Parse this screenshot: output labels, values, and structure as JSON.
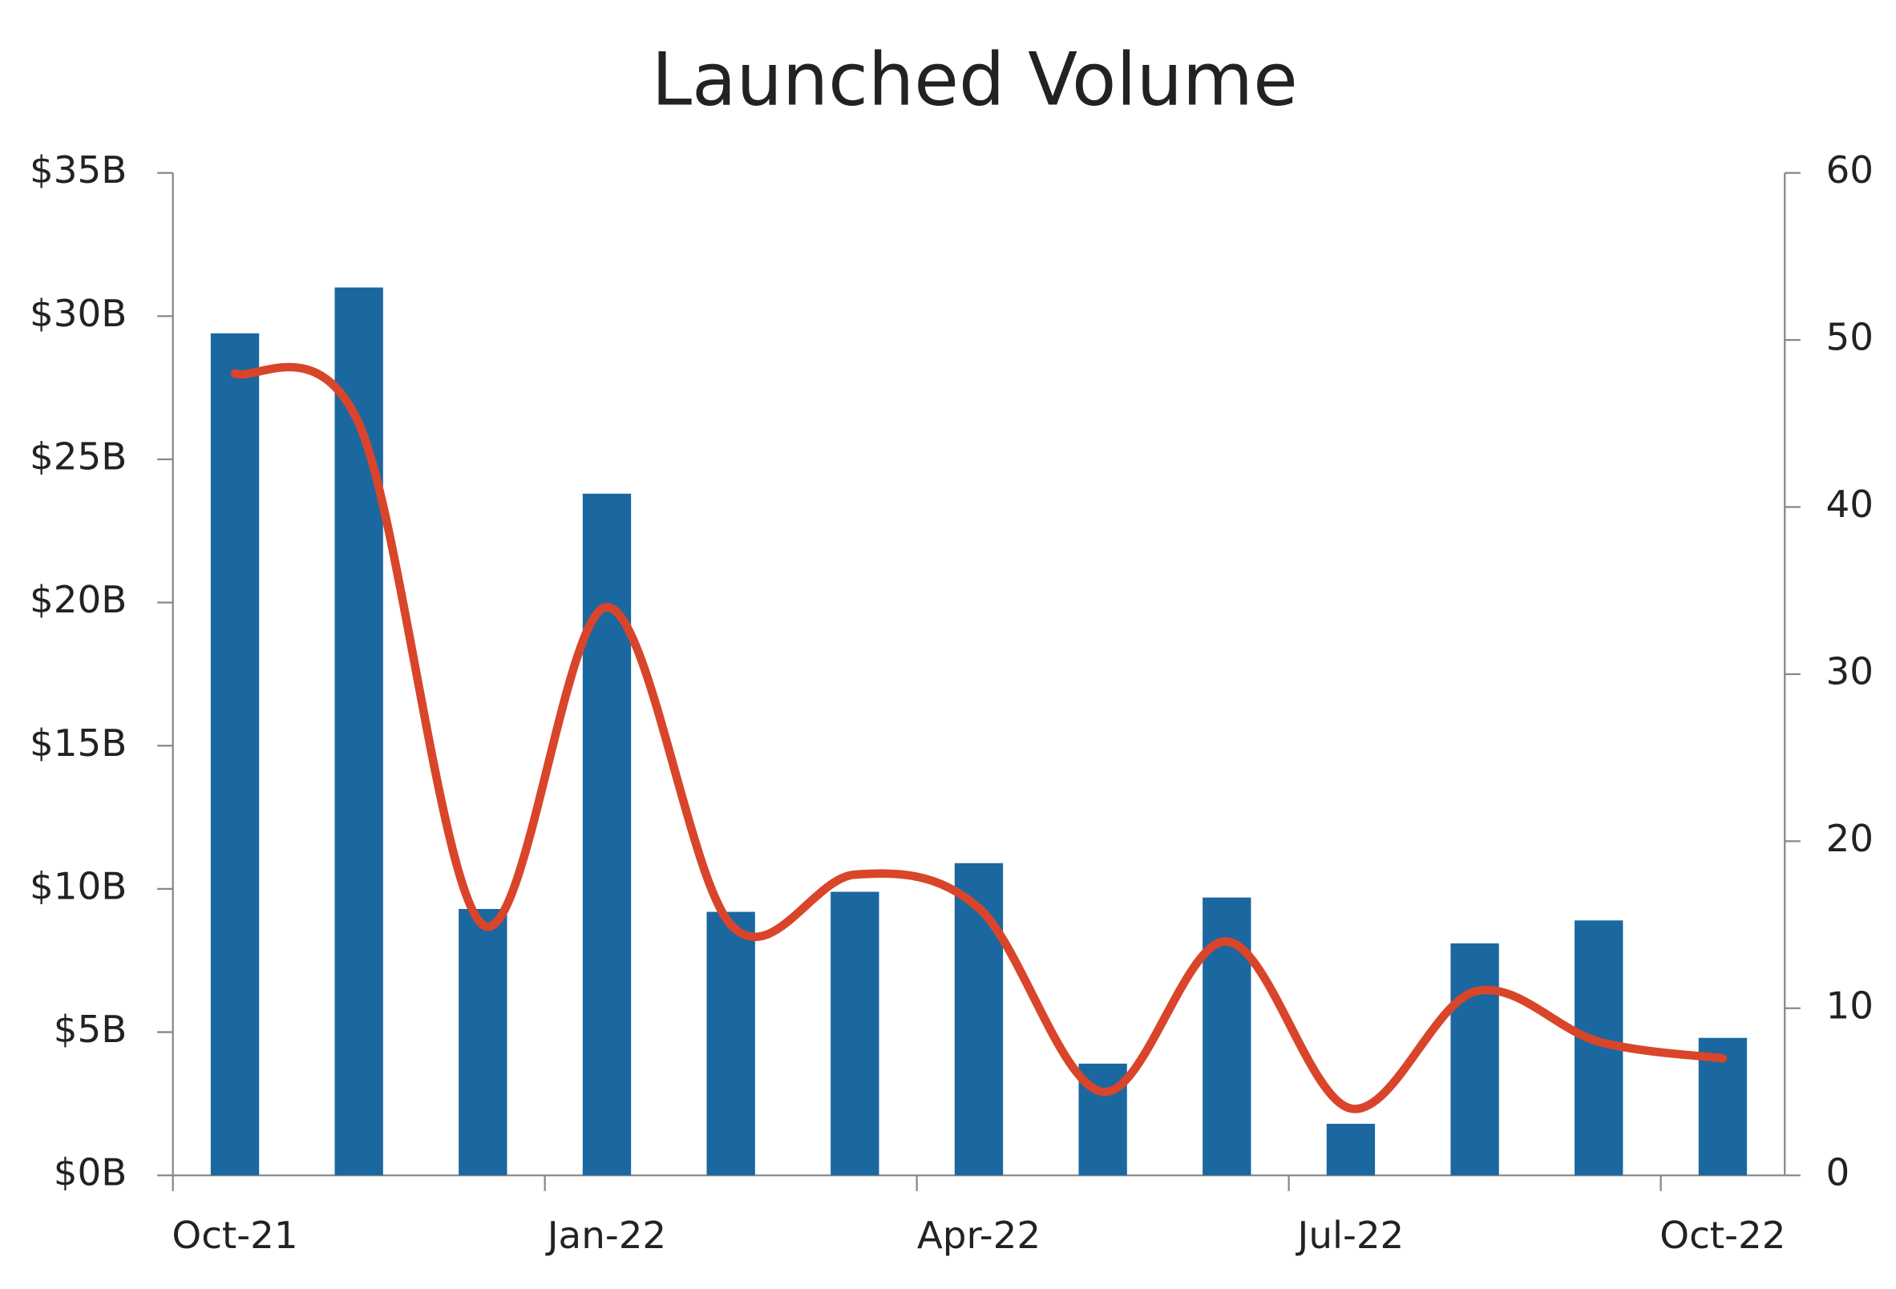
{
  "chart_data": {
    "type": "bar",
    "title": "Launched Volume",
    "categories": [
      "Oct-21",
      null,
      null,
      "Jan-22",
      null,
      null,
      "Apr-22",
      null,
      null,
      "Jul-22",
      null,
      null,
      "Oct-22"
    ],
    "series": [
      {
        "type": "bar",
        "color": "#1b67a0",
        "values": [
          29.4,
          31.0,
          9.3,
          23.8,
          9.2,
          9.9,
          10.9,
          3.9,
          9.7,
          1.8,
          8.1,
          8.9,
          4.8
        ]
      },
      {
        "type": "line",
        "axis": "y2",
        "color": "#d9452a",
        "smooth": true,
        "values": [
          48,
          45,
          15,
          34,
          15,
          18,
          16,
          5,
          14,
          4,
          11,
          8,
          7
        ]
      }
    ],
    "ylim": [
      0,
      35
    ],
    "yticks": [
      {
        "value": 0,
        "label": "$0B"
      },
      {
        "value": 5,
        "label": "$5B"
      },
      {
        "value": 10,
        "label": "$10B"
      },
      {
        "value": 15,
        "label": "$15B"
      },
      {
        "value": 20,
        "label": "$20B"
      },
      {
        "value": 25,
        "label": "$25B"
      },
      {
        "value": 30,
        "label": "$30B"
      },
      {
        "value": 35,
        "label": "$35B"
      }
    ],
    "y2lim": [
      0,
      60
    ],
    "y2ticks": [
      0,
      10,
      20,
      30,
      40,
      50,
      60
    ],
    "grid": false
  }
}
